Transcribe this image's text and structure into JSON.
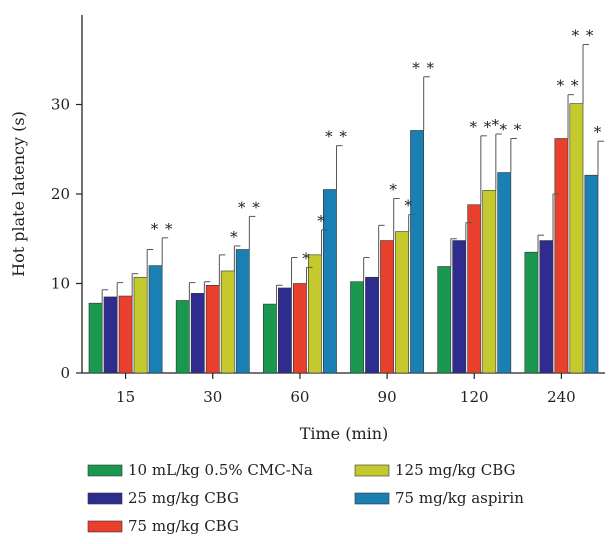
{
  "chart_data": {
    "type": "bar",
    "title": "",
    "xlabel": "Time (min)",
    "ylabel": "Hot plate latency (s)",
    "ylim": [
      0,
      40
    ],
    "yticks": [
      0,
      10,
      20,
      30
    ],
    "categories": [
      "15",
      "30",
      "60",
      "90",
      "120",
      "240"
    ],
    "legend_position": "bottom",
    "series": [
      {
        "name": "10 mL/kg 0.5% CMC-Na",
        "color": "#1a9850",
        "values": [
          7.8,
          8.1,
          7.7,
          10.2,
          11.9,
          13.5
        ],
        "errors": [
          1.5,
          2.0,
          2.1,
          2.7,
          3.1,
          1.9
        ],
        "significance": [
          "",
          "",
          "",
          "",
          "",
          ""
        ]
      },
      {
        "name": "25 mg/kg CBG",
        "color": "#2e2c8f",
        "values": [
          8.5,
          8.9,
          9.5,
          10.7,
          14.8,
          14.8
        ],
        "errors": [
          1.6,
          1.3,
          3.4,
          5.8,
          2.0,
          5.2
        ],
        "significance": [
          "",
          "",
          "",
          "",
          "",
          ""
        ]
      },
      {
        "name": "75 mg/kg CBG",
        "color": "#e8402c",
        "values": [
          8.6,
          9.8,
          10.0,
          14.8,
          18.8,
          26.2
        ],
        "errors": [
          2.5,
          3.4,
          1.8,
          4.7,
          7.7,
          4.9
        ],
        "significance": [
          "",
          "",
          "*",
          "*",
          "* *",
          "* *"
        ]
      },
      {
        "name": "125 mg/kg CBG",
        "color": "#c4c92d",
        "values": [
          10.7,
          11.4,
          13.2,
          15.8,
          20.4,
          30.1
        ],
        "errors": [
          3.1,
          2.8,
          2.8,
          1.9,
          6.3,
          6.6
        ],
        "significance": [
          "",
          "*",
          "*",
          "*",
          "*",
          "* *"
        ]
      },
      {
        "name": "75 mg/kg aspirin",
        "color": "#1a7fb2",
        "values": [
          12.0,
          13.8,
          20.5,
          27.1,
          22.4,
          22.1
        ],
        "errors": [
          3.1,
          3.7,
          4.9,
          6.0,
          3.8,
          3.8
        ],
        "significance": [
          "* *",
          "* *",
          "* *",
          "* *",
          "* *",
          "*"
        ]
      }
    ]
  }
}
